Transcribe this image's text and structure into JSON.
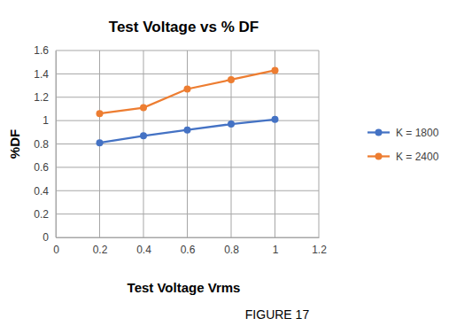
{
  "chart_data": {
    "type": "line",
    "title": "Test Voltage vs % DF",
    "x_label": "Test Voltage Vrms",
    "y_label": "%DF",
    "annotations": [
      "FIGURE 17"
    ],
    "x": [
      0.2,
      0.4,
      0.6,
      0.8,
      1
    ],
    "series": [
      {
        "name": "K = 1800",
        "color": "#4472c4",
        "marker": "circle",
        "values": [
          0.81,
          0.87,
          0.92,
          0.97,
          1.01
        ]
      },
      {
        "name": "K = 2400",
        "color": "#ed7d31",
        "marker": "circle",
        "values": [
          1.06,
          1.11,
          1.27,
          1.35,
          1.43
        ]
      }
    ],
    "xlim": [
      0,
      1.2
    ],
    "xticks": [
      0,
      0.2,
      0.4,
      0.6,
      0.8,
      1,
      1.2
    ],
    "ylim": [
      0,
      1.6
    ],
    "yticks": [
      0,
      0.2,
      0.4,
      0.6,
      0.8,
      1,
      1.2,
      1.4,
      1.6
    ],
    "grid": true,
    "legend": "right"
  }
}
